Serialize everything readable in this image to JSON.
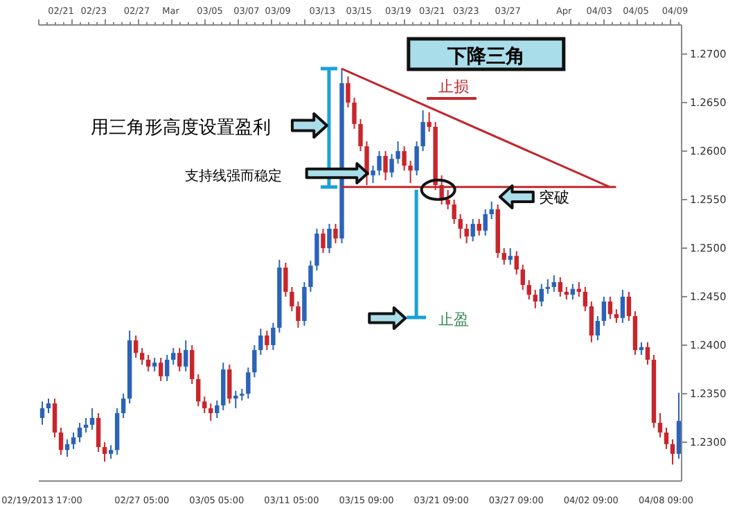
{
  "chart_data": {
    "type": "candlestick",
    "title": "下降三角",
    "categories": [
      "02/19/2013 17:00",
      null,
      null,
      null,
      null,
      null,
      null,
      null,
      null,
      null,
      null,
      null,
      null,
      null,
      null,
      null,
      "02/27 05:00",
      null,
      null,
      null,
      null,
      null,
      null,
      null,
      null,
      null,
      null,
      null,
      "03/05 05:00",
      null,
      null,
      null,
      null,
      null,
      null,
      null,
      null,
      null,
      null,
      null,
      "03/11 05:00",
      null,
      null,
      null,
      null,
      null,
      null,
      null,
      null,
      null,
      null,
      null,
      "03/15 09:00",
      null,
      null,
      null,
      null,
      null,
      null,
      null,
      null,
      null,
      null,
      null,
      "03/21 09:00",
      null,
      null,
      null,
      null,
      null,
      null,
      null,
      null,
      null,
      null,
      null,
      "03/27 09:00",
      null,
      null,
      null,
      null,
      null,
      null,
      null,
      null,
      null,
      null,
      null,
      "04/02 09:00",
      null,
      null,
      null,
      null,
      null,
      null,
      null,
      null,
      null,
      null,
      null,
      "04/08 09:00",
      null,
      null
    ],
    "ohlc": [
      [
        1.2325,
        1.2342,
        1.2318,
        1.2335
      ],
      [
        1.2335,
        1.2345,
        1.233,
        1.234
      ],
      [
        1.234,
        1.2345,
        1.2305,
        1.231
      ],
      [
        1.231,
        1.2315,
        1.2287,
        1.2292
      ],
      [
        1.2292,
        1.2303,
        1.2285,
        1.2298
      ],
      [
        1.2298,
        1.231,
        1.2293,
        1.2305
      ],
      [
        1.2305,
        1.232,
        1.23,
        1.2315
      ],
      [
        1.2315,
        1.2325,
        1.231,
        1.2318
      ],
      [
        1.2318,
        1.2335,
        1.2313,
        1.2325
      ],
      [
        1.2325,
        1.233,
        1.229,
        1.2295
      ],
      [
        1.2295,
        1.23,
        1.228,
        1.2288
      ],
      [
        1.2288,
        1.2297,
        1.2283,
        1.2292
      ],
      [
        1.2292,
        1.2335,
        1.2287,
        1.233
      ],
      [
        1.233,
        1.235,
        1.2325,
        1.2345
      ],
      [
        1.2345,
        1.2415,
        1.234,
        1.2405
      ],
      [
        1.2405,
        1.241,
        1.2387,
        1.2392
      ],
      [
        1.2392,
        1.2397,
        1.238,
        1.2385
      ],
      [
        1.2385,
        1.239,
        1.2373,
        1.2378
      ],
      [
        1.2378,
        1.2387,
        1.2373,
        1.2382
      ],
      [
        1.2382,
        1.2387,
        1.2363,
        1.2368
      ],
      [
        1.2368,
        1.239,
        1.2363,
        1.2385
      ],
      [
        1.2385,
        1.2397,
        1.238,
        1.2392
      ],
      [
        1.2392,
        1.2397,
        1.2373,
        1.2378
      ],
      [
        1.2378,
        1.2405,
        1.2373,
        1.2395
      ],
      [
        1.2395,
        1.24,
        1.236,
        1.2365
      ],
      [
        1.2365,
        1.237,
        1.2337,
        1.2342
      ],
      [
        1.2342,
        1.2347,
        1.233,
        1.2335
      ],
      [
        1.2335,
        1.234,
        1.2322,
        1.233
      ],
      [
        1.233,
        1.2343,
        1.2325,
        1.2338
      ],
      [
        1.2338,
        1.2382,
        1.2333,
        1.2375
      ],
      [
        1.2375,
        1.238,
        1.234,
        1.2345
      ],
      [
        1.2345,
        1.2353,
        1.2335,
        1.2348
      ],
      [
        1.2348,
        1.2355,
        1.2343,
        1.235
      ],
      [
        1.235,
        1.2377,
        1.2345,
        1.2372
      ],
      [
        1.2372,
        1.24,
        1.2367,
        1.2395
      ],
      [
        1.2395,
        1.2417,
        1.239,
        1.241
      ],
      [
        1.241,
        1.2415,
        1.2395,
        1.24
      ],
      [
        1.24,
        1.2423,
        1.2395,
        1.2418
      ],
      [
        1.2418,
        1.2488,
        1.2413,
        1.248
      ],
      [
        1.248,
        1.2485,
        1.245,
        1.2455
      ],
      [
        1.2455,
        1.246,
        1.2435,
        1.244
      ],
      [
        1.244,
        1.2445,
        1.2418,
        1.2425
      ],
      [
        1.2425,
        1.2465,
        1.242,
        1.246
      ],
      [
        1.246,
        1.2487,
        1.2455,
        1.2482
      ],
      [
        1.2482,
        1.252,
        1.2477,
        1.2515
      ],
      [
        1.2515,
        1.252,
        1.2495,
        1.25
      ],
      [
        1.25,
        1.2525,
        1.2495,
        1.252
      ],
      [
        1.252,
        1.2525,
        1.2505,
        1.251
      ],
      [
        1.251,
        1.2685,
        1.2505,
        1.267
      ],
      [
        1.267,
        1.2677,
        1.2645,
        1.265
      ],
      [
        1.265,
        1.2655,
        1.2623,
        1.2628
      ],
      [
        1.2628,
        1.2633,
        1.26,
        1.2605
      ],
      [
        1.2605,
        1.261,
        1.2565,
        1.2575
      ],
      [
        1.2575,
        1.2585,
        1.2567,
        1.258
      ],
      [
        1.258,
        1.26,
        1.2575,
        1.2595
      ],
      [
        1.2595,
        1.26,
        1.257,
        1.2578
      ],
      [
        1.2578,
        1.2597,
        1.2573,
        1.2592
      ],
      [
        1.2592,
        1.261,
        1.2587,
        1.26
      ],
      [
        1.26,
        1.2605,
        1.258,
        1.2585
      ],
      [
        1.2585,
        1.259,
        1.2567,
        1.258
      ],
      [
        1.258,
        1.261,
        1.2575,
        1.2605
      ],
      [
        1.2605,
        1.2642,
        1.26,
        1.263
      ],
      [
        1.263,
        1.264,
        1.262,
        1.2625
      ],
      [
        1.2625,
        1.263,
        1.256,
        1.2565
      ],
      [
        1.2565,
        1.2575,
        1.2545,
        1.255
      ],
      [
        1.255,
        1.256,
        1.254,
        1.2545
      ],
      [
        1.2545,
        1.255,
        1.2525,
        1.253
      ],
      [
        1.253,
        1.2535,
        1.251,
        1.252
      ],
      [
        1.252,
        1.2525,
        1.2505,
        1.2512
      ],
      [
        1.2512,
        1.253,
        1.2507,
        1.2525
      ],
      [
        1.2525,
        1.253,
        1.2513,
        1.2518
      ],
      [
        1.2518,
        1.254,
        1.2513,
        1.2535
      ],
      [
        1.2535,
        1.2548,
        1.253,
        1.254
      ],
      [
        1.254,
        1.2545,
        1.249,
        1.2495
      ],
      [
        1.2495,
        1.25,
        1.2483,
        1.2488
      ],
      [
        1.2488,
        1.25,
        1.2483,
        1.2492
      ],
      [
        1.2492,
        1.2497,
        1.2473,
        1.2478
      ],
      [
        1.2478,
        1.2483,
        1.2457,
        1.2462
      ],
      [
        1.2462,
        1.2467,
        1.2447,
        1.2452
      ],
      [
        1.2452,
        1.2457,
        1.2438,
        1.2445
      ],
      [
        1.2445,
        1.2463,
        1.244,
        1.2458
      ],
      [
        1.2458,
        1.2468,
        1.2453,
        1.246
      ],
      [
        1.246,
        1.2472,
        1.2455,
        1.2465
      ],
      [
        1.2465,
        1.247,
        1.245,
        1.2455
      ],
      [
        1.2455,
        1.246,
        1.2447,
        1.2452
      ],
      [
        1.2452,
        1.2463,
        1.2447,
        1.2458
      ],
      [
        1.2458,
        1.2465,
        1.245,
        1.2455
      ],
      [
        1.2455,
        1.246,
        1.2435,
        1.244
      ],
      [
        1.244,
        1.2445,
        1.2403,
        1.241
      ],
      [
        1.241,
        1.243,
        1.2405,
        1.2425
      ],
      [
        1.2425,
        1.245,
        1.242,
        1.2445
      ],
      [
        1.2445,
        1.245,
        1.2427,
        1.2432
      ],
      [
        1.2432,
        1.2437,
        1.2423,
        1.2428
      ],
      [
        1.2428,
        1.2457,
        1.2423,
        1.245
      ],
      [
        1.245,
        1.2455,
        1.2425,
        1.243
      ],
      [
        1.243,
        1.2435,
        1.239,
        1.2395
      ],
      [
        1.2395,
        1.2403,
        1.239,
        1.2398
      ],
      [
        1.2398,
        1.2403,
        1.238,
        1.2385
      ],
      [
        1.2385,
        1.239,
        1.2315,
        1.232
      ],
      [
        1.232,
        1.233,
        1.2305,
        1.231
      ],
      [
        1.231,
        1.2315,
        1.2293,
        1.2298
      ],
      [
        1.2298,
        1.2303,
        1.2277,
        1.2288
      ],
      [
        1.2288,
        1.2351,
        1.2283,
        1.2322
      ]
    ],
    "colors": [
      "#2a63b8",
      "#2a63b8",
      "#c8262c",
      "#c8262c",
      "#2a63b8",
      "#2a63b8",
      "#2a63b8",
      "#2a63b8",
      "#2a63b8",
      "#c8262c",
      "#c8262c",
      "#2a63b8",
      "#2a63b8",
      "#2a63b8",
      "#2a63b8",
      "#c8262c",
      "#c8262c",
      "#c8262c",
      "#2a63b8",
      "#c8262c",
      "#2a63b8",
      "#2a63b8",
      "#c8262c",
      "#2a63b8",
      "#c8262c",
      "#c8262c",
      "#c8262c",
      "#c8262c",
      "#2a63b8",
      "#2a63b8",
      "#c8262c",
      "#2a63b8",
      "#2a63b8",
      "#2a63b8",
      "#2a63b8",
      "#2a63b8",
      "#c8262c",
      "#2a63b8",
      "#2a63b8",
      "#c8262c",
      "#c8262c",
      "#c8262c",
      "#2a63b8",
      "#2a63b8",
      "#2a63b8",
      "#c8262c",
      "#2a63b8",
      "#c8262c",
      "#2a63b8",
      "#c8262c",
      "#c8262c",
      "#c8262c",
      "#c8262c",
      "#2a63b8",
      "#2a63b8",
      "#c8262c",
      "#2a63b8",
      "#2a63b8",
      "#c8262c",
      "#c8262c",
      "#2a63b8",
      "#2a63b8",
      "#c8262c",
      "#c8262c",
      "#c8262c",
      "#c8262c",
      "#c8262c",
      "#c8262c",
      "#c8262c",
      "#2a63b8",
      "#c8262c",
      "#2a63b8",
      "#2a63b8",
      "#c8262c",
      "#c8262c",
      "#2a63b8",
      "#c8262c",
      "#c8262c",
      "#c8262c",
      "#c8262c",
      "#2a63b8",
      "#2a63b8",
      "#2a63b8",
      "#c8262c",
      "#c8262c",
      "#2a63b8",
      "#c8262c",
      "#c8262c",
      "#c8262c",
      "#2a63b8",
      "#2a63b8",
      "#c8262c",
      "#c8262c",
      "#2a63b8",
      "#c8262c",
      "#c8262c",
      "#2a63b8",
      "#c8262c",
      "#c8262c",
      "#c8262c",
      "#c8262c",
      "#c8262c",
      "#2a63b8"
    ],
    "series": [
      {
        "type": "line",
        "color": "#c0282d",
        "values": [
          null,
          null,
          null,
          null,
          null,
          null,
          null,
          null,
          null,
          null,
          null,
          null,
          null,
          null,
          null,
          null,
          null,
          null,
          null,
          null,
          null,
          null,
          null,
          null,
          null,
          null,
          null,
          null,
          null,
          null,
          null,
          null,
          null,
          null,
          null,
          null,
          null,
          null,
          null,
          null,
          null,
          null,
          null,
          null,
          null,
          null,
          null,
          null,
          1.2685,
          null,
          null,
          null,
          null,
          null,
          null,
          null,
          null,
          null,
          null,
          null,
          null,
          null,
          null,
          null,
          null,
          null,
          null,
          null,
          null,
          null,
          null,
          null,
          null,
          null,
          null,
          null,
          null,
          null,
          null,
          null,
          null,
          null,
          null,
          null,
          null,
          null,
          null,
          null,
          null,
          null,
          null,
          1.2563,
          null,
          null,
          null,
          null,
          null,
          null,
          null,
          null,
          null,
          null,
          null
        ]
      },
      {
        "type": "line",
        "color": "#c0282d",
        "values": [
          null,
          null,
          null,
          null,
          null,
          null,
          null,
          null,
          null,
          null,
          null,
          null,
          null,
          null,
          null,
          null,
          null,
          null,
          null,
          null,
          null,
          null,
          null,
          null,
          null,
          null,
          null,
          null,
          null,
          null,
          null,
          null,
          null,
          null,
          null,
          null,
          null,
          null,
          null,
          null,
          null,
          null,
          null,
          null,
          null,
          null,
          null,
          null,
          1.2563,
          null,
          null,
          null,
          null,
          null,
          null,
          null,
          null,
          null,
          null,
          null,
          null,
          null,
          null,
          null,
          null,
          null,
          null,
          null,
          null,
          null,
          null,
          null,
          null,
          null,
          null,
          null,
          null,
          null,
          null,
          null,
          null,
          null,
          null,
          null,
          null,
          null,
          null,
          null,
          null,
          null,
          null,
          null,
          1.2563,
          null,
          null,
          null,
          null,
          null,
          null,
          null,
          null,
          null,
          null
        ]
      }
    ],
    "ylim": [
      1.226,
      1.273
    ],
    "yticks": [
      {
        "value": 1.23,
        "label": "1.2300"
      },
      {
        "value": 1.235,
        "label": "1.2350"
      },
      {
        "value": 1.24,
        "label": "1.2400"
      },
      {
        "value": 1.245,
        "label": "1.2450"
      },
      {
        "value": 1.25,
        "label": "1.2500"
      },
      {
        "value": 1.255,
        "label": "1.2550"
      },
      {
        "value": 1.26,
        "label": "1.2600"
      },
      {
        "value": 1.265,
        "label": "1.2650"
      },
      {
        "value": 1.27,
        "label": "1.2700"
      }
    ],
    "annotations": [
      "用三角形高度设置盈利",
      "支持线强而稳定",
      "突破",
      "止损",
      "止盈",
      "02/21",
      "02/23",
      "02/27",
      "Mar",
      "03/05",
      "03/07",
      "03/09",
      "03/13",
      "03/15",
      "03/19",
      "03/21",
      "03/23",
      "03/27",
      "Apr",
      "04/03",
      "04/05",
      "04/09"
    ],
    "grid": false,
    "legend": false
  }
}
